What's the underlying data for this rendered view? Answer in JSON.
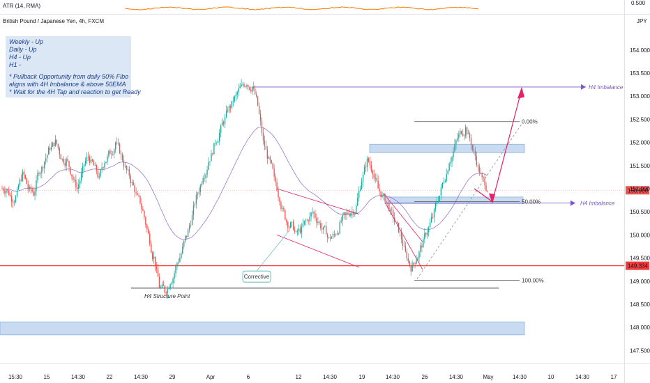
{
  "header": {
    "symbol": "British Pound / Japanese Yen, 4h, FXCM",
    "indicator": "ATR (14, RMA)",
    "indicator_value": "0.500",
    "currency": "JPY"
  },
  "note": {
    "lines": [
      "Weekly - Up",
      "Daily     - Up",
      "H4        - Up",
      "H1        -",
      "",
      "* Pullback Opportunity from daily 50% Fibo",
      "   aligns with 4H Imbalance & above 50EMA",
      "* Wait for the 4H Tap and reaction to get Ready"
    ]
  },
  "chart_data": {
    "type": "candlestick",
    "symbol": "GBPJPY",
    "timeframe": "4h",
    "ylim": [
      147.25,
      154.75
    ],
    "y_ticks": [
      "154.000",
      "153.500",
      "153.000",
      "152.500",
      "152.000",
      "151.500",
      "151.000",
      "150.500",
      "150.000",
      "149.500",
      "149.000",
      "148.500",
      "148.000",
      "147.500"
    ],
    "x_ticks": [
      "15:30",
      "15",
      "14:30",
      "22",
      "14:30",
      "29",
      "Apr",
      "6",
      "12",
      "14:30",
      "19",
      "14:30",
      "26",
      "14:30",
      "May",
      "14:30",
      "10",
      "14:30",
      "17"
    ],
    "price_labels": [
      {
        "text": "150.966",
        "value": 150.966,
        "color": "#ef5350"
      },
      {
        "text": "149.334",
        "value": 149.334,
        "color": "#ef3b3b"
      }
    ],
    "horizontal_levels": [
      {
        "value": 149.334,
        "color": "#ef3b3b"
      },
      {
        "value": 148.85,
        "color": "#2a2e39"
      },
      {
        "value": 153.2,
        "color": "#7e57c2"
      },
      {
        "value": 150.69,
        "color": "#7e57c2"
      }
    ],
    "zones": [
      {
        "from": 151.78,
        "to": 151.96,
        "label": ""
      },
      {
        "from": 150.68,
        "to": 150.82,
        "label": ""
      },
      {
        "from": 147.84,
        "to": 148.12,
        "label": ""
      }
    ],
    "fibonacci": [
      {
        "label": "0.00%",
        "value": 152.45
      },
      {
        "label": "50.00%",
        "value": 150.72
      },
      {
        "label": "100.00%",
        "value": 149.02
      }
    ],
    "annotations": [
      "H4 Imbalance",
      "H4 Imbalance",
      "H4 Structure Point",
      "Corrective"
    ],
    "ohlc_sample_closes": [
      151.0,
      150.8,
      150.9,
      151.3,
      151.0,
      150.9,
      151.4,
      151.6,
      151.9,
      152.0,
      151.7,
      151.6,
      151.3,
      151.0,
      151.4,
      151.7,
      151.5,
      151.2,
      151.6,
      151.8,
      152.0,
      151.7,
      151.4,
      151.1,
      150.8,
      150.5,
      150.0,
      149.5,
      148.9,
      148.8,
      149.0,
      149.3,
      149.6,
      150.0,
      150.4,
      150.9,
      151.3,
      151.6,
      151.9,
      152.2,
      152.5,
      152.8,
      153.0,
      153.2,
      153.3,
      153.2,
      152.8,
      152.0,
      151.6,
      151.2,
      150.8,
      150.4,
      150.2,
      150.0,
      150.1,
      150.3,
      150.5,
      150.3,
      150.1,
      149.9,
      150.0,
      150.2,
      150.4,
      150.5,
      150.6,
      151.2,
      151.6,
      151.4,
      151.0,
      150.8,
      150.6,
      150.3,
      150.0,
      149.6,
      149.3,
      149.5,
      149.8,
      150.1,
      150.4,
      150.8,
      151.2,
      151.6,
      151.9,
      152.2,
      152.3,
      152.0,
      151.6,
      151.2,
      151.0
    ]
  }
}
